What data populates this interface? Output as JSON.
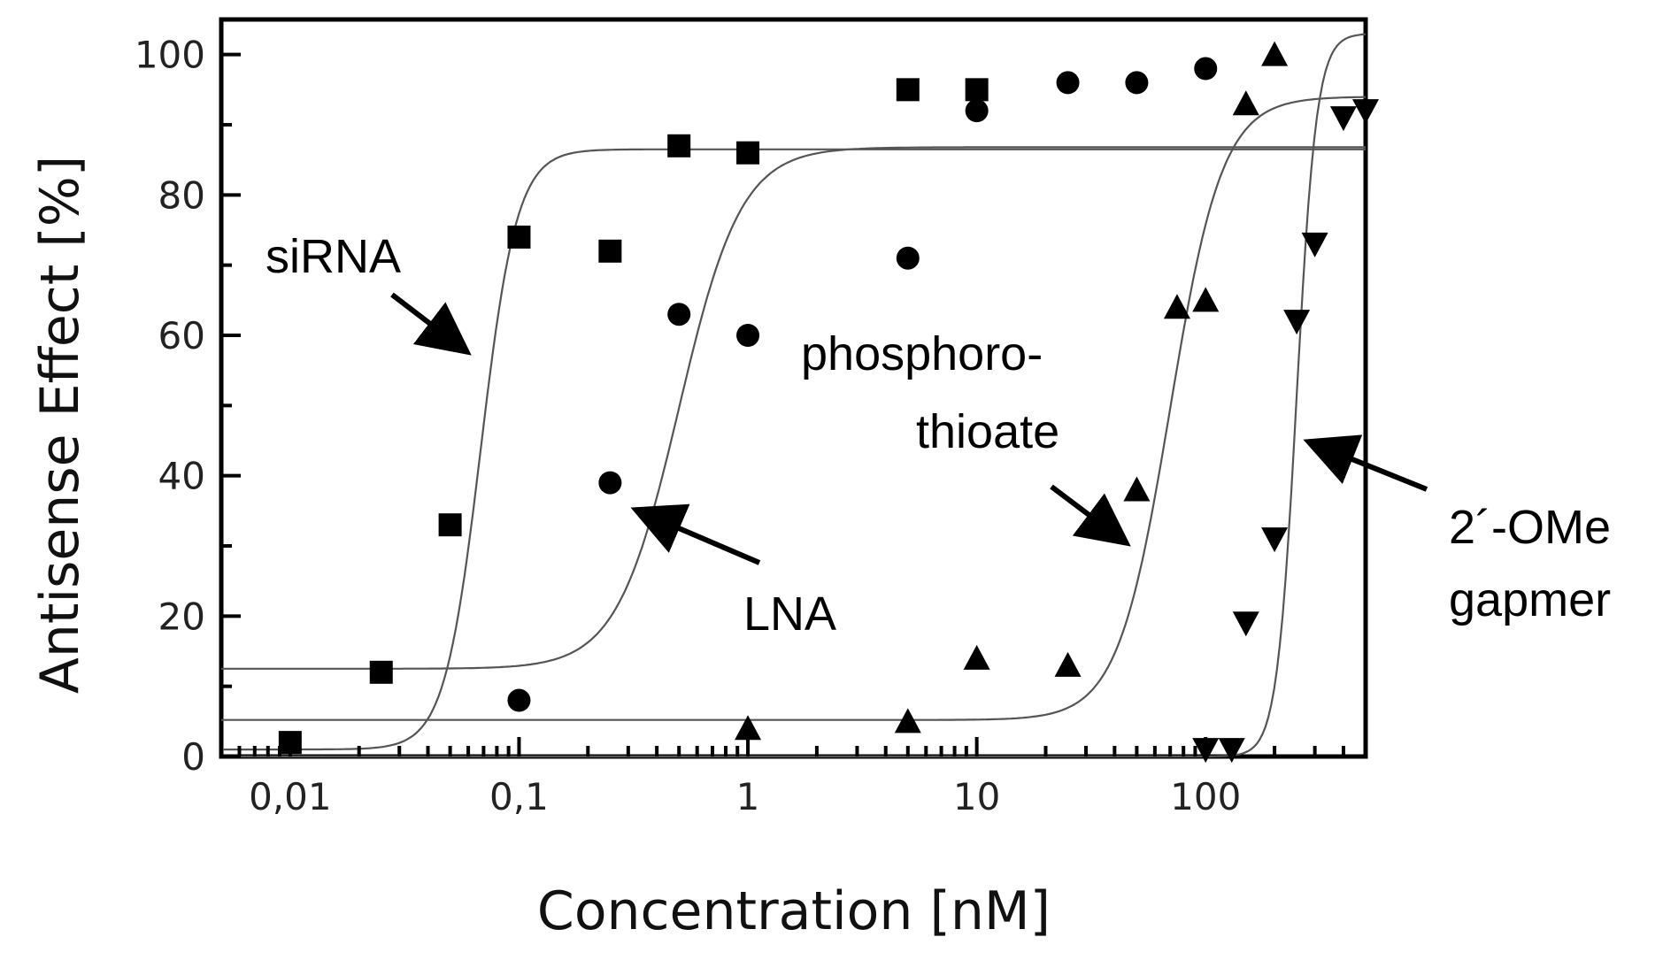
{
  "chart_data": {
    "type": "scatter",
    "xscale": "log",
    "xlim": [
      0.005,
      500
    ],
    "ylim": [
      0,
      105
    ],
    "xlabel": "Concentration [nM]",
    "ylabel": "Antisense Effect [%]",
    "xticks": [
      {
        "value": 0.01,
        "label": "0,01"
      },
      {
        "value": 0.1,
        "label": "0,1"
      },
      {
        "value": 1,
        "label": "1"
      },
      {
        "value": 10,
        "label": "10"
      },
      {
        "value": 100,
        "label": "100"
      }
    ],
    "yticks": [
      {
        "value": 0,
        "label": "0"
      },
      {
        "value": 20,
        "label": "20"
      },
      {
        "value": 40,
        "label": "40"
      },
      {
        "value": 60,
        "label": "60"
      },
      {
        "value": 80,
        "label": "80"
      },
      {
        "value": 100,
        "label": "100"
      }
    ],
    "grid": false,
    "series": [
      {
        "name": "siRNA",
        "marker": "square",
        "points": [
          [
            0.01,
            2
          ],
          [
            0.025,
            12
          ],
          [
            0.05,
            33
          ],
          [
            0.1,
            74
          ],
          [
            0.25,
            72
          ],
          [
            0.5,
            87
          ],
          [
            1,
            86
          ],
          [
            5,
            95
          ],
          [
            10,
            95
          ]
        ],
        "fit": {
          "bottom": 1,
          "top": 86.5,
          "ec50": 0.068,
          "hill": 5.5
        }
      },
      {
        "name": "LNA",
        "marker": "circle",
        "points": [
          [
            0.1,
            8
          ],
          [
            0.25,
            39
          ],
          [
            0.5,
            63
          ],
          [
            1,
            60
          ],
          [
            5,
            71
          ],
          [
            10,
            92
          ],
          [
            25,
            96
          ],
          [
            50,
            96
          ],
          [
            100,
            98
          ]
        ],
        "fit": {
          "bottom": 12.5,
          "top": 86.8,
          "ec50": 0.5,
          "hill": 3.2
        }
      },
      {
        "name": "phosphoro-thioate",
        "marker": "triangle-up",
        "points": [
          [
            1,
            4
          ],
          [
            5,
            5
          ],
          [
            10,
            14
          ],
          [
            25,
            13
          ],
          [
            50,
            38
          ],
          [
            75,
            64
          ],
          [
            100,
            65
          ],
          [
            150,
            93
          ],
          [
            200,
            100
          ]
        ],
        "fit": {
          "bottom": 5.2,
          "top": 94,
          "ec50": 70,
          "hill": 3.8
        }
      },
      {
        "name": "2´-OMe gapmer",
        "marker": "triangle-down",
        "points": [
          [
            100,
            1
          ],
          [
            130,
            1
          ],
          [
            150,
            19
          ],
          [
            200,
            31
          ],
          [
            250,
            62
          ],
          [
            300,
            73
          ],
          [
            400,
            91
          ],
          [
            500,
            92
          ]
        ],
        "fit": {
          "bottom": 0,
          "top": 103,
          "ec50": 250,
          "hill": 10
        }
      }
    ],
    "annotations": [
      {
        "text": "siRNA",
        "series": "siRNA"
      },
      {
        "text": "LNA",
        "series": "LNA"
      },
      {
        "text": "phosphoro-",
        "series": "phosphoro-thioate"
      },
      {
        "text": "thioate",
        "series": "phosphoro-thioate"
      },
      {
        "text": "2´-OMe",
        "series": "2´-OMe gapmer"
      },
      {
        "text": "gapmer",
        "series": "2´-OMe gapmer"
      }
    ]
  }
}
